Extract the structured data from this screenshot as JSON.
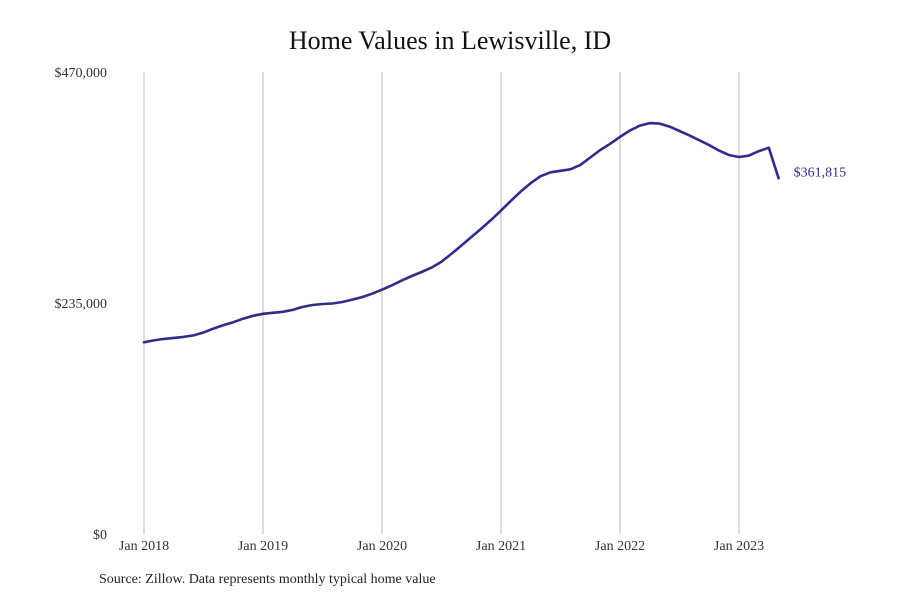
{
  "chart_data": {
    "type": "line",
    "title": "Home Values in Lewisville, ID",
    "xlabel": "",
    "ylabel": "",
    "ylim": [
      0,
      470000
    ],
    "y_ticks": [
      {
        "value": 0,
        "label": "$0"
      },
      {
        "value": 235000,
        "label": "$235,000"
      },
      {
        "value": 470000,
        "label": "$470,000"
      }
    ],
    "x_ticks": [
      {
        "value": 2018.0,
        "label": "Jan 2018"
      },
      {
        "value": 2019.0,
        "label": "Jan 2019"
      },
      {
        "value": 2020.0,
        "label": "Jan 2020"
      },
      {
        "value": 2021.0,
        "label": "Jan 2021"
      },
      {
        "value": 2022.0,
        "label": "Jan 2022"
      },
      {
        "value": 2023.0,
        "label": "Jan 2023"
      }
    ],
    "xlim": [
      2018.0,
      2023.333
    ],
    "grid": {
      "vertical": true,
      "horizontal": false
    },
    "line_color": "#2e2e8a",
    "series": [
      {
        "x": [
          2018.0,
          2018.083,
          2018.167,
          2018.25,
          2018.333,
          2018.417,
          2018.5,
          2018.583,
          2018.667,
          2018.75,
          2018.833,
          2018.917,
          2019.0,
          2019.083,
          2019.167,
          2019.25,
          2019.333,
          2019.417,
          2019.5,
          2019.583,
          2019.667,
          2019.75,
          2019.833,
          2019.917,
          2020.0,
          2020.083,
          2020.167,
          2020.25,
          2020.333,
          2020.417,
          2020.5,
          2020.583,
          2020.667,
          2020.75,
          2020.833,
          2020.917,
          2021.0,
          2021.083,
          2021.167,
          2021.25,
          2021.333,
          2021.417,
          2021.5,
          2021.583,
          2021.667,
          2021.75,
          2021.833,
          2021.917,
          2022.0,
          2022.083,
          2022.167,
          2022.25,
          2022.333,
          2022.417,
          2022.5,
          2022.583,
          2022.667,
          2022.75,
          2022.833,
          2022.917,
          2023.0,
          2023.083,
          2023.167,
          2023.25,
          2023.333
        ],
        "values": [
          195000,
          197000,
          198500,
          199500,
          200500,
          202000,
          205000,
          209000,
          212500,
          215500,
          219000,
          222000,
          224000,
          225000,
          226000,
          228000,
          231000,
          233000,
          234000,
          234500,
          236000,
          238500,
          241000,
          244500,
          248500,
          253000,
          258000,
          262500,
          266500,
          271000,
          277000,
          285000,
          293500,
          302000,
          310500,
          319500,
          329000,
          339000,
          348500,
          357000,
          364000,
          368000,
          369500,
          371000,
          375500,
          383000,
          390500,
          397000,
          404000,
          410500,
          415500,
          418000,
          417500,
          414500,
          410000,
          405500,
          400500,
          395500,
          390000,
          385500,
          383500,
          385000,
          389500,
          393000,
          361815
        ],
        "end_label": "$361,815"
      }
    ]
  },
  "footer": {
    "source": "Source: Zillow. Data represents monthly typical home value"
  }
}
